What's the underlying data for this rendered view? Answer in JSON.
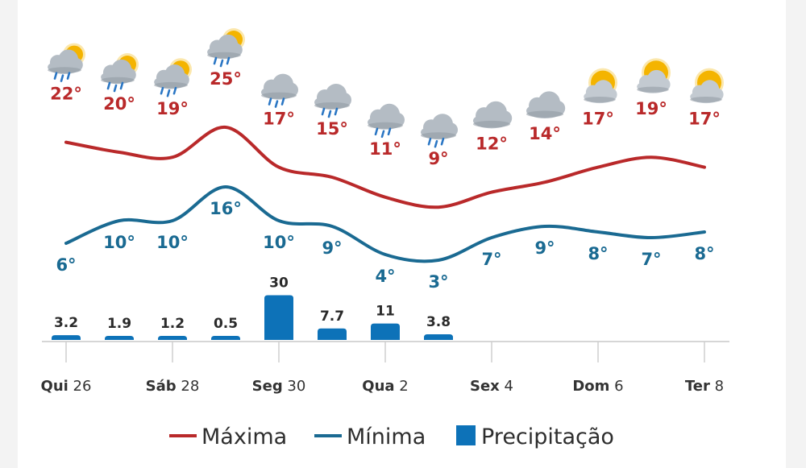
{
  "chart_data": {
    "type": "line",
    "days": [
      {
        "max": 22,
        "min": 6,
        "precip": 3.2,
        "precip_label": "3.2",
        "icon": "sun-cloud-rain-icon"
      },
      {
        "max": 20,
        "min": 10,
        "precip": 1.9,
        "precip_label": "1.9",
        "icon": "sun-cloud-rain-icon"
      },
      {
        "max": 19,
        "min": 10,
        "precip": 1.2,
        "precip_label": "1.2",
        "icon": "sun-cloud-rain-icon"
      },
      {
        "max": 25,
        "min": 16,
        "precip": 0.5,
        "precip_label": "0.5",
        "icon": "sun-cloud-rain-icon"
      },
      {
        "max": 17,
        "min": 10,
        "precip": 30,
        "precip_label": "30",
        "icon": "cloud-rain-icon"
      },
      {
        "max": 15,
        "min": 9,
        "precip": 7.7,
        "precip_label": "7.7",
        "icon": "cloud-rain-icon"
      },
      {
        "max": 11,
        "min": 4,
        "precip": 11,
        "precip_label": "11",
        "icon": "cloud-rain-icon"
      },
      {
        "max": 9,
        "min": 3,
        "precip": 3.8,
        "precip_label": "3.8",
        "icon": "cloud-rain-icon"
      },
      {
        "max": 12,
        "min": 7,
        "precip": 0,
        "precip_label": "",
        "icon": "cloud-icon"
      },
      {
        "max": 14,
        "min": 9,
        "precip": 0,
        "precip_label": "",
        "icon": "cloud-icon"
      },
      {
        "max": 17,
        "min": 8,
        "precip": 0,
        "precip_label": "",
        "icon": "sun-cloud-icon"
      },
      {
        "max": 19,
        "min": 7,
        "precip": 0,
        "precip_label": "",
        "icon": "sun-cloud-icon"
      },
      {
        "max": 17,
        "min": 8,
        "precip": 0,
        "precip_label": "",
        "icon": "sun-cloud-icon"
      }
    ],
    "x_ticks": [
      {
        "day_index": 0,
        "name": "Qui",
        "num": "26"
      },
      {
        "day_index": 2,
        "name": "Sáb",
        "num": "28"
      },
      {
        "day_index": 4,
        "name": "Seg",
        "num": "30"
      },
      {
        "day_index": 6,
        "name": "Qua",
        "num": "2"
      },
      {
        "day_index": 8,
        "name": "Sex",
        "num": "4"
      },
      {
        "day_index": 10,
        "name": "Dom",
        "num": "6"
      },
      {
        "day_index": 12,
        "name": "Ter",
        "num": "8"
      }
    ],
    "degree_symbol": "°",
    "series": [
      {
        "name": "Máxima",
        "color": "#b9292a"
      },
      {
        "name": "Mínima",
        "color": "#1a6a92"
      },
      {
        "name": "Precipitação",
        "color": "#0d72b8"
      }
    ]
  },
  "legend": {
    "max_label": "Máxima",
    "min_label": "Mínima",
    "precip_label": "Precipitação"
  }
}
